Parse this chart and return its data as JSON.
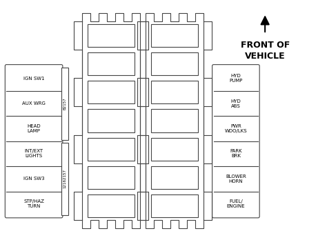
{
  "bg_color": "#ffffff",
  "line_color": "#444444",
  "title_line1": "FRONT OF",
  "title_line2": "VEHICLE",
  "left_labels": [
    "IGN SW1",
    "AUX WRG",
    "HEAD\nLAMP",
    "INT/EXT\nLIGHTS",
    "IGN SW3",
    "STP/HAZ\nTURN"
  ],
  "right_labels": [
    "HYD\nPUMP",
    "HYD\nABS",
    "PWR\nWDO/LKS",
    "PARK\nBRK",
    "BLOWER\nHORN",
    "FUEL/\nENGINE"
  ],
  "left_connector_label1": "B2157",
  "left_connector_label2": "12162157",
  "n_fuses": 7,
  "n_teeth": 4
}
